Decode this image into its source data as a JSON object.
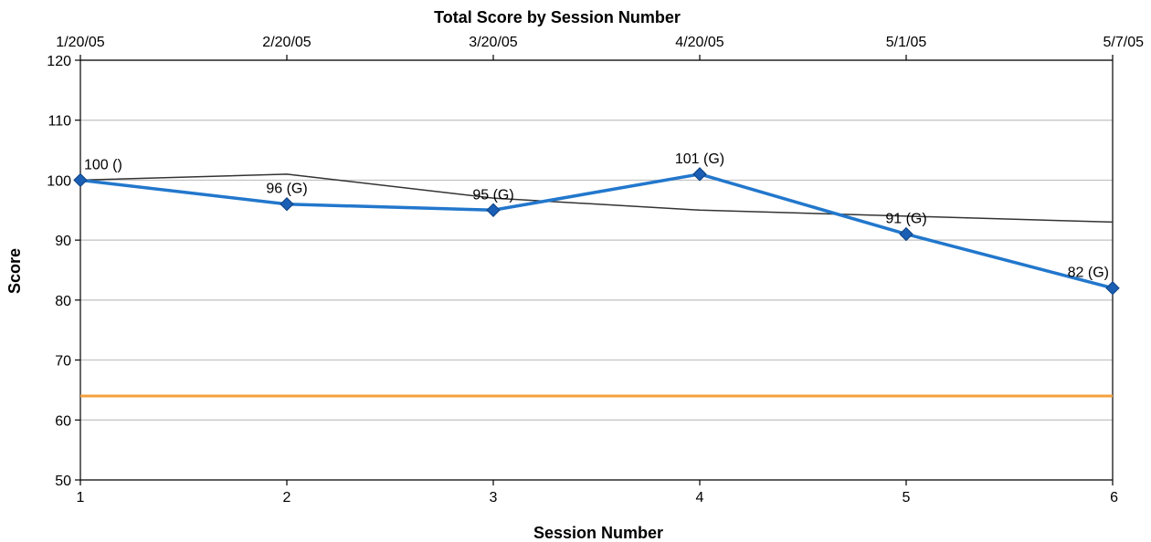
{
  "chart_data": {
    "type": "line",
    "title": "Total Score by Session Number",
    "xlabel": "Session Number",
    "ylabel": "Score",
    "x": [
      1,
      2,
      3,
      4,
      5,
      6
    ],
    "top_categories": [
      "1/20/05",
      "2/20/05",
      "3/20/05",
      "4/20/05",
      "5/1/05",
      "5/7/05"
    ],
    "y_ticks": [
      50,
      60,
      70,
      80,
      90,
      100,
      110,
      120
    ],
    "ylim": [
      50,
      120
    ],
    "xlim": [
      1,
      6
    ],
    "grid": "horizontal",
    "series": [
      {
        "values": [
          100,
          96,
          95,
          101,
          91,
          82
        ],
        "labels": [
          "100 ()",
          "96 (G)",
          "95 (G)",
          "101 (G)",
          "91 (G)",
          "82 (G)"
        ],
        "color": "#2277cc",
        "marker_color": "#1a5fb4",
        "markers": "diamond"
      },
      {
        "values": [
          100,
          101,
          97,
          95,
          94,
          93
        ],
        "color": "#333333"
      },
      {
        "values": [
          64,
          64,
          64,
          64,
          64,
          64
        ],
        "color": "#f5a03c"
      }
    ]
  }
}
